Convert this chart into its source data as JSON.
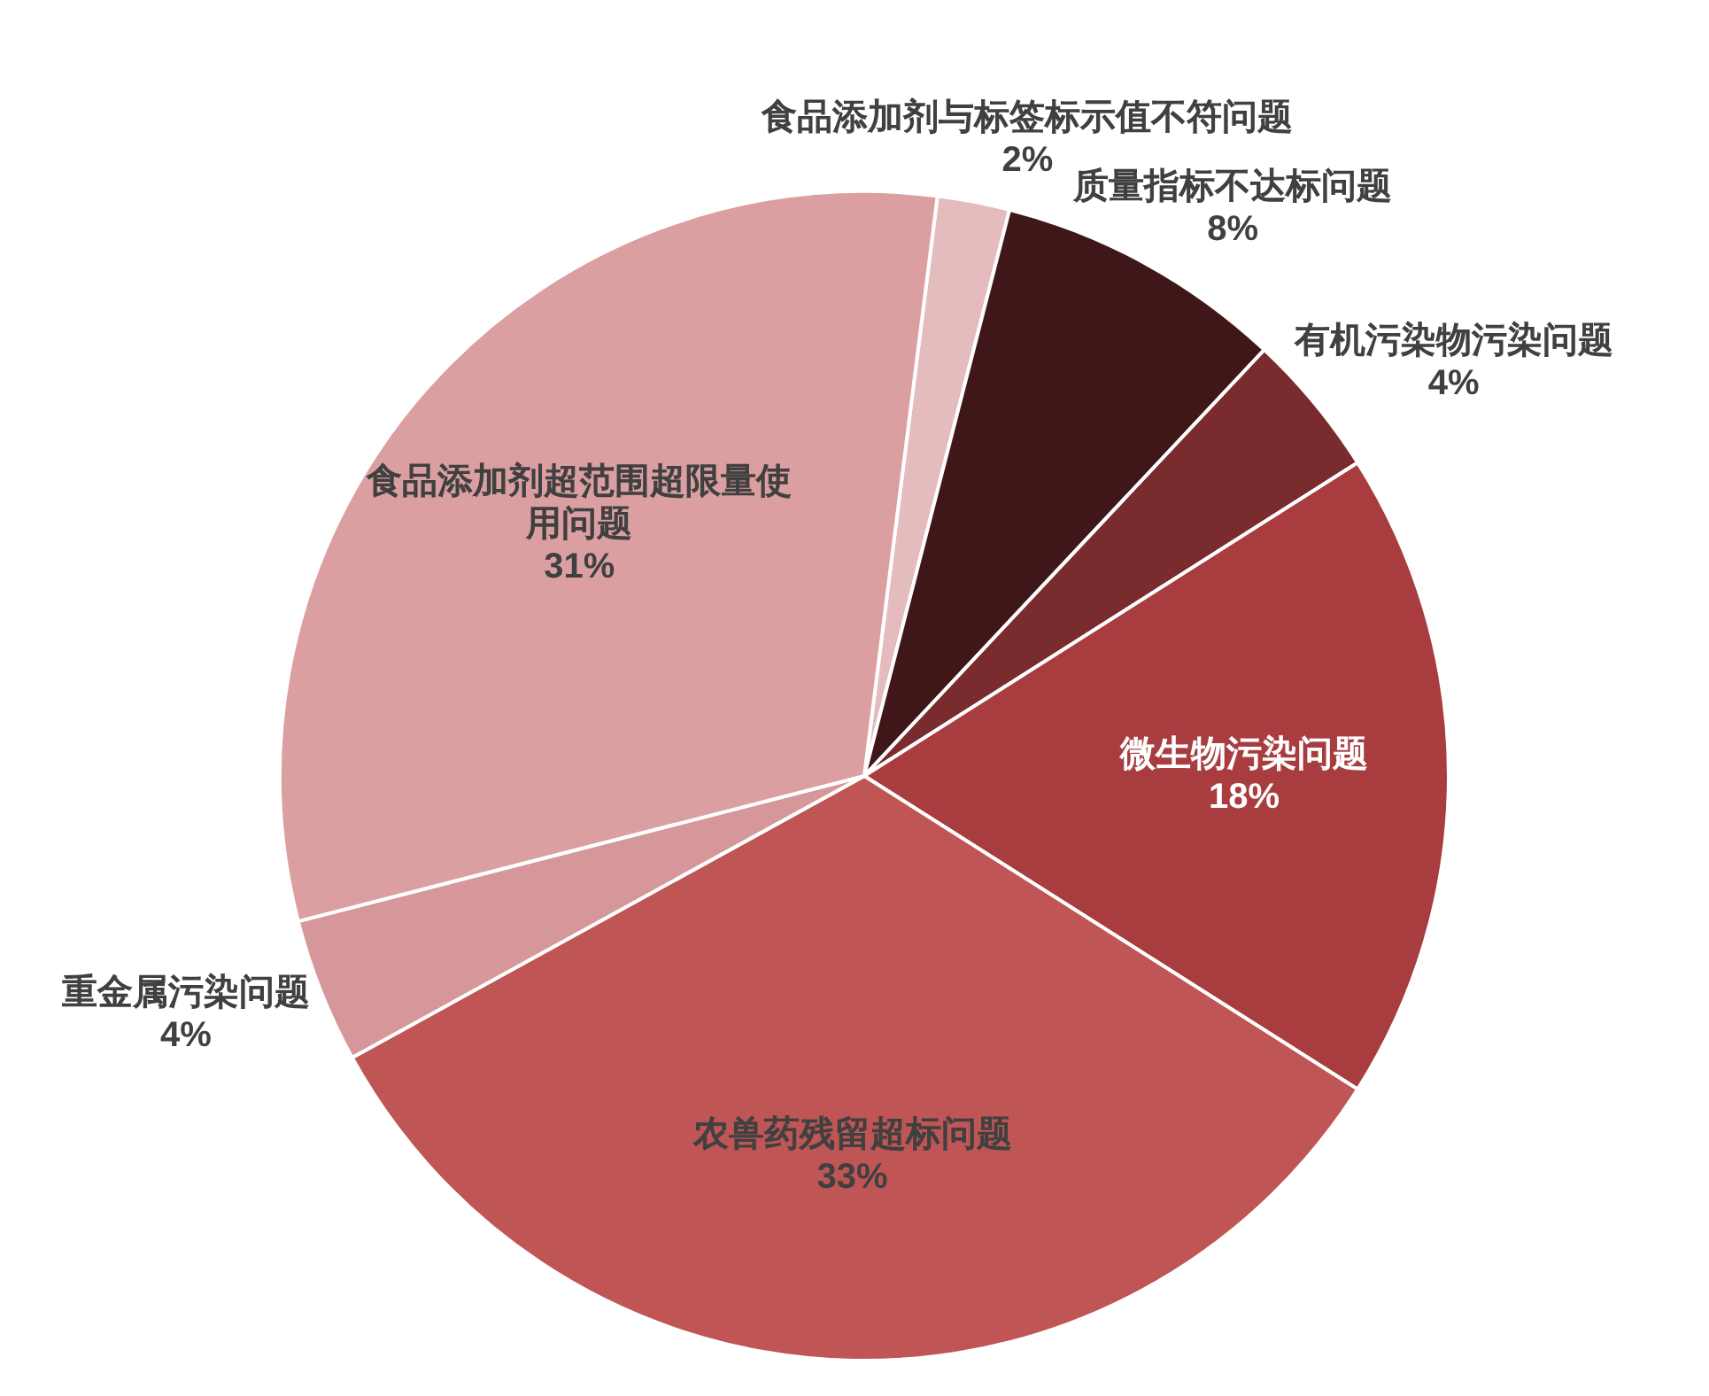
{
  "chart_data": {
    "type": "pie",
    "categories": [
      "食品添加剂与标签标示值不符问题",
      "质量指标不达标问题",
      "有机污染物污染问题",
      "微生物污染问题",
      "农兽药残留超标问题",
      "重金属污染问题",
      "食品添加剂超范围超限量使用问题"
    ],
    "values": [
      2,
      8,
      4,
      18,
      33,
      4,
      31
    ],
    "colors": [
      "#e5bcbd",
      "#401718",
      "#7a2b2d",
      "#a83c3f",
      "#c05556",
      "#d5979a",
      "#dc9fa1"
    ],
    "value_labels": [
      "2%",
      "8%",
      "4%",
      "18%",
      "33%",
      "4%",
      "31%"
    ]
  }
}
